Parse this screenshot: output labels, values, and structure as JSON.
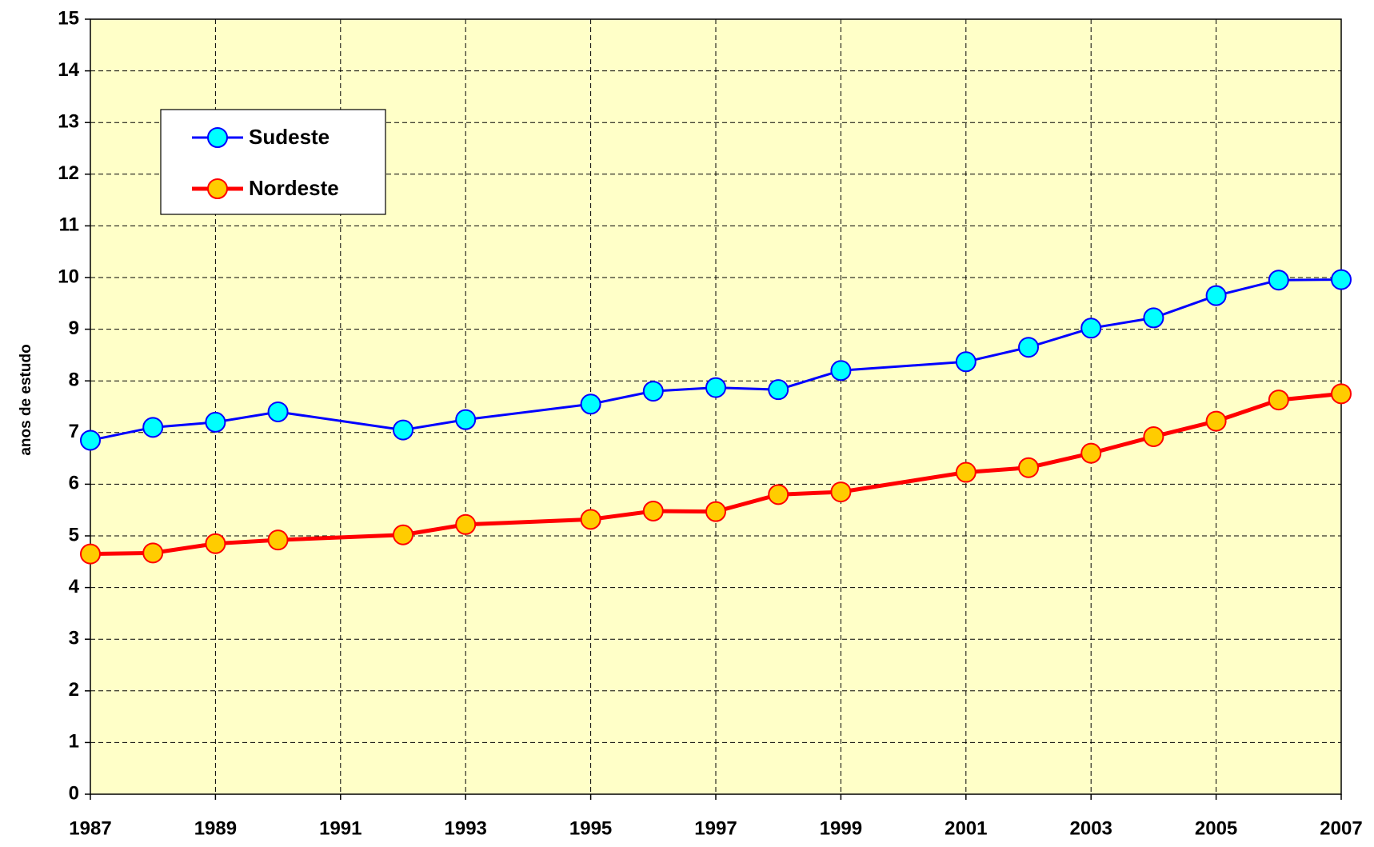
{
  "chart_data": {
    "type": "line",
    "y_label": "anos de estudo",
    "x": [
      1987,
      1988,
      1989,
      1990,
      1992,
      1993,
      1995,
      1996,
      1997,
      1998,
      1999,
      2001,
      2002,
      2003,
      2004,
      2005,
      2006,
      2007
    ],
    "series": [
      {
        "name": "Sudeste",
        "color": "#0000ff",
        "marker_color": "#00ffff",
        "values": [
          6.85,
          7.1,
          7.2,
          7.4,
          7.05,
          7.25,
          7.55,
          7.8,
          7.87,
          7.83,
          8.2,
          8.37,
          8.65,
          9.02,
          9.22,
          9.65,
          9.95,
          9.96
        ]
      },
      {
        "name": "Nordeste",
        "color": "#ff0000",
        "marker_color": "#ffcc00",
        "values": [
          4.65,
          4.67,
          4.85,
          4.92,
          5.02,
          5.22,
          5.32,
          5.48,
          5.47,
          5.8,
          5.85,
          6.23,
          6.32,
          6.6,
          6.92,
          7.22,
          7.63,
          7.75
        ]
      }
    ],
    "xlim": [
      1987,
      2007
    ],
    "xticks": [
      1987,
      1989,
      1991,
      1993,
      1995,
      1997,
      1999,
      2001,
      2003,
      2005,
      2007
    ],
    "ylim": [
      0,
      15
    ],
    "yticks": [
      0,
      1,
      2,
      3,
      4,
      5,
      6,
      7,
      8,
      9,
      10,
      11,
      12,
      13,
      14,
      15
    ],
    "grid": true,
    "legend": "upper left"
  }
}
